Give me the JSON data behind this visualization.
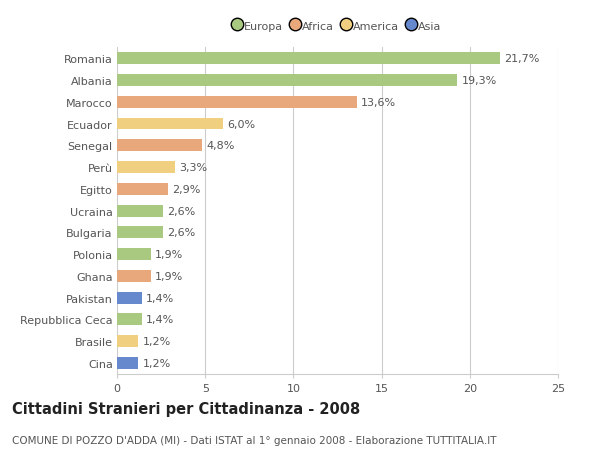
{
  "categories": [
    "Romania",
    "Albania",
    "Marocco",
    "Ecuador",
    "Senegal",
    "Perù",
    "Egitto",
    "Ucraina",
    "Bulgaria",
    "Polonia",
    "Ghana",
    "Pakistan",
    "Repubblica Ceca",
    "Brasile",
    "Cina"
  ],
  "values": [
    21.7,
    19.3,
    13.6,
    6.0,
    4.8,
    3.3,
    2.9,
    2.6,
    2.6,
    1.9,
    1.9,
    1.4,
    1.4,
    1.2,
    1.2
  ],
  "labels": [
    "21,7%",
    "19,3%",
    "13,6%",
    "6,0%",
    "4,8%",
    "3,3%",
    "2,9%",
    "2,6%",
    "2,6%",
    "1,9%",
    "1,9%",
    "1,4%",
    "1,4%",
    "1,2%",
    "1,2%"
  ],
  "colors": [
    "#a8c97f",
    "#a8c97f",
    "#e8a87c",
    "#f0d080",
    "#e8a87c",
    "#f0d080",
    "#e8a87c",
    "#a8c97f",
    "#a8c97f",
    "#a8c97f",
    "#e8a87c",
    "#6688cc",
    "#a8c97f",
    "#f0d080",
    "#6688cc"
  ],
  "legend_labels": [
    "Europa",
    "Africa",
    "America",
    "Asia"
  ],
  "legend_colors": [
    "#a8c97f",
    "#e8a87c",
    "#f0d080",
    "#6688cc"
  ],
  "title": "Cittadini Stranieri per Cittadinanza - 2008",
  "subtitle": "COMUNE DI POZZO D'ADDA (MI) - Dati ISTAT al 1° gennaio 2008 - Elaborazione TUTTITALIA.IT",
  "xlim": [
    0,
    25
  ],
  "xticks": [
    0,
    5,
    10,
    15,
    20,
    25
  ],
  "background_color": "#ffffff",
  "grid_color": "#cccccc",
  "bar_height": 0.55,
  "label_fontsize": 8.0,
  "tick_fontsize": 8.0,
  "title_fontsize": 10.5,
  "subtitle_fontsize": 7.5
}
